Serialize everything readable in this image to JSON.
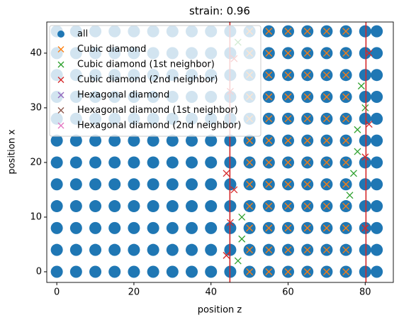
{
  "chart_data": {
    "type": "scatter",
    "title": "strain: 0.96",
    "xlabel": "position z",
    "ylabel": "position x",
    "xlim": [
      -2.6,
      87.3
    ],
    "ylim": [
      -1.95,
      45.7
    ],
    "xticks": [
      0,
      20,
      40,
      60,
      80
    ],
    "yticks": [
      0,
      10,
      20,
      30,
      40
    ],
    "legend": "upper left",
    "vlines": [
      44.9,
      80.2
    ],
    "vline_color": "#d62728",
    "series": [
      {
        "name": "all",
        "color": "#1f77b4",
        "marker": "o",
        "x": [
          0,
          0,
          0,
          0,
          0,
          0,
          0,
          0,
          0,
          0,
          0,
          0,
          5,
          5,
          5,
          5,
          5,
          5,
          5,
          5,
          5,
          5,
          5,
          5,
          10,
          10,
          10,
          10,
          10,
          10,
          10,
          10,
          10,
          10,
          10,
          10,
          15,
          15,
          15,
          15,
          15,
          15,
          15,
          15,
          15,
          15,
          15,
          15,
          20,
          20,
          20,
          20,
          20,
          20,
          20,
          20,
          20,
          20,
          20,
          20,
          25,
          25,
          25,
          25,
          25,
          25,
          25,
          25,
          25,
          25,
          25,
          25,
          30,
          30,
          30,
          30,
          30,
          30,
          30,
          30,
          30,
          30,
          30,
          30,
          35,
          35,
          35,
          35,
          35,
          35,
          35,
          35,
          35,
          35,
          35,
          35,
          40,
          40,
          40,
          40,
          40,
          40,
          40,
          40,
          40,
          40,
          40,
          40,
          45,
          45,
          45,
          45,
          45,
          45,
          45,
          45,
          45,
          45,
          45,
          45,
          50,
          50,
          50,
          50,
          50,
          50,
          50,
          50,
          50,
          50,
          50,
          50,
          55,
          55,
          55,
          55,
          55,
          55,
          55,
          55,
          55,
          55,
          55,
          55,
          60,
          60,
          60,
          60,
          60,
          60,
          60,
          60,
          60,
          60,
          60,
          60,
          65,
          65,
          65,
          65,
          65,
          65,
          65,
          65,
          65,
          65,
          65,
          65,
          70,
          70,
          70,
          70,
          70,
          70,
          70,
          70,
          70,
          70,
          70,
          70,
          75,
          75,
          75,
          75,
          75,
          75,
          75,
          75,
          75,
          75,
          75,
          75,
          80,
          80,
          80,
          80,
          80,
          80,
          80,
          80,
          80,
          80,
          80,
          80,
          83,
          83,
          83,
          83,
          83,
          83,
          83,
          83,
          83,
          83,
          83,
          83
        ],
        "y": [
          0,
          4,
          8,
          12,
          16,
          20,
          24,
          28,
          32,
          36,
          40,
          44,
          0,
          4,
          8,
          12,
          16,
          20,
          24,
          28,
          32,
          36,
          40,
          44,
          0,
          4,
          8,
          12,
          16,
          20,
          24,
          28,
          32,
          36,
          40,
          44,
          0,
          4,
          8,
          12,
          16,
          20,
          24,
          28,
          32,
          36,
          40,
          44,
          0,
          4,
          8,
          12,
          16,
          20,
          24,
          28,
          32,
          36,
          40,
          44,
          0,
          4,
          8,
          12,
          16,
          20,
          24,
          28,
          32,
          36,
          40,
          44,
          0,
          4,
          8,
          12,
          16,
          20,
          24,
          28,
          32,
          36,
          40,
          44,
          0,
          4,
          8,
          12,
          16,
          20,
          24,
          28,
          32,
          36,
          40,
          44,
          0,
          4,
          8,
          12,
          16,
          20,
          24,
          28,
          32,
          36,
          40,
          44,
          0,
          4,
          8,
          12,
          16,
          20,
          24,
          28,
          32,
          36,
          40,
          44,
          0,
          4,
          8,
          12,
          16,
          20,
          24,
          28,
          32,
          36,
          40,
          44,
          0,
          4,
          8,
          12,
          16,
          20,
          24,
          28,
          32,
          36,
          40,
          44,
          0,
          4,
          8,
          12,
          16,
          20,
          24,
          28,
          32,
          36,
          40,
          44,
          0,
          4,
          8,
          12,
          16,
          20,
          24,
          28,
          32,
          36,
          40,
          44,
          0,
          4,
          8,
          12,
          16,
          20,
          24,
          28,
          32,
          36,
          40,
          44,
          0,
          4,
          8,
          12,
          16,
          20,
          24,
          28,
          32,
          36,
          40,
          44,
          0,
          4,
          8,
          12,
          16,
          20,
          24,
          28,
          32,
          36,
          40,
          44,
          0,
          4,
          8,
          12,
          16,
          20,
          24,
          28,
          32,
          36,
          40,
          44
        ]
      },
      {
        "name": "Cubic diamond",
        "color": "#ff7f0e",
        "marker": "x",
        "x": [
          50,
          50,
          50,
          50,
          50,
          50,
          50,
          50,
          50,
          50,
          50,
          50,
          55,
          55,
          55,
          55,
          55,
          55,
          55,
          55,
          55,
          55,
          55,
          55,
          60,
          60,
          60,
          60,
          60,
          60,
          60,
          60,
          60,
          60,
          60,
          60,
          65,
          65,
          65,
          65,
          65,
          65,
          65,
          65,
          65,
          65,
          65,
          65,
          70,
          70,
          70,
          70,
          70,
          70,
          70,
          70,
          70,
          70,
          70,
          70,
          75,
          75,
          75,
          75,
          75,
          75,
          75,
          75,
          75,
          75,
          75,
          75
        ],
        "y": [
          0,
          4,
          8,
          12,
          16,
          20,
          24,
          28,
          32,
          36,
          40,
          44,
          0,
          4,
          8,
          12,
          16,
          20,
          24,
          28,
          32,
          36,
          40,
          44,
          0,
          4,
          8,
          12,
          16,
          20,
          24,
          28,
          32,
          36,
          40,
          44,
          0,
          4,
          8,
          12,
          16,
          20,
          24,
          28,
          32,
          36,
          40,
          44,
          0,
          4,
          8,
          12,
          16,
          20,
          24,
          28,
          32,
          36,
          40,
          44,
          0,
          4,
          8,
          12,
          16,
          20,
          24,
          28,
          32,
          36,
          40,
          44
        ]
      },
      {
        "name": "Cubic diamond (1st neighbor)",
        "color": "#2ca02c",
        "marker": "x",
        "x": [
          47,
          48,
          77,
          78,
          79,
          47,
          48,
          76,
          78,
          80
        ],
        "y": [
          2,
          10,
          18,
          26,
          34,
          42,
          6,
          14,
          22,
          30
        ]
      },
      {
        "name": "Cubic diamond (2nd neighbor)",
        "color": "#d62728",
        "marker": "x",
        "x": [
          44,
          45,
          46,
          80,
          81,
          45,
          46,
          80,
          44,
          81
        ],
        "y": [
          3,
          9,
          15,
          21,
          27,
          33,
          39,
          8,
          18,
          40
        ]
      },
      {
        "name": "Hexagonal diamond",
        "color": "#9467bd",
        "marker": "x",
        "x": [],
        "y": []
      },
      {
        "name": "Hexagonal diamond (1st neighbor)",
        "color": "#8c564b",
        "marker": "x",
        "x": [],
        "y": []
      },
      {
        "name": "Hexagonal diamond (2nd neighbor)",
        "color": "#e377c2",
        "marker": "x",
        "x": [],
        "y": []
      }
    ]
  }
}
